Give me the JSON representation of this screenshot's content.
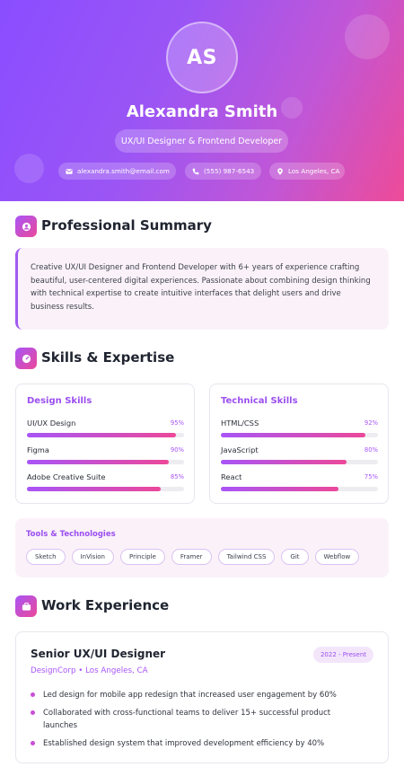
{
  "header": {
    "initials": "AS",
    "name": "Alexandra Smith",
    "role": "UX/UI Designer & Frontend Developer",
    "contact": {
      "email": "alexandra.smith@email.com",
      "phone": "(555) 987-6543",
      "location": "Los Angeles, CA"
    }
  },
  "summary": {
    "title": "Professional Summary",
    "text": "Creative UX/UI Designer and Frontend Developer with 6+ years of experience crafting beautiful, user-centered digital experiences. Passionate about combining design thinking with technical expertise to create intuitive interfaces that delight users and drive business results."
  },
  "skills": {
    "title": "Skills & Expertise",
    "design": {
      "title": "Design Skills",
      "items": [
        {
          "name": "UI/UX Design",
          "pct": "95%",
          "level": 95
        },
        {
          "name": "Figma",
          "pct": "90%",
          "level": 90
        },
        {
          "name": "Adobe Creative Suite",
          "pct": "85%",
          "level": 85
        }
      ]
    },
    "technical": {
      "title": "Technical Skills",
      "items": [
        {
          "name": "HTML/CSS",
          "pct": "92%",
          "level": 92
        },
        {
          "name": "JavaScript",
          "pct": "80%",
          "level": 80
        },
        {
          "name": "React",
          "pct": "75%",
          "level": 75
        }
      ]
    },
    "tools": {
      "title": "Tools & Technologies",
      "tags": [
        "Sketch",
        "InVision",
        "Principle",
        "Framer",
        "Tailwind CSS",
        "Git",
        "Webflow"
      ]
    }
  },
  "experience": {
    "title": "Work Experience",
    "jobs": [
      {
        "title": "Senior UX/UI Designer",
        "period": "2022 - Present",
        "company": "DesignCorp • Los Angeles, CA",
        "bullets": [
          "Led design for mobile app redesign that increased user engagement by 60%",
          "Collaborated with cross-functional teams to deliver 15+ successful product launches",
          "Established design system that improved development efficiency by 40%"
        ]
      }
    ]
  },
  "colors": {
    "accent": "#a855f7",
    "accent_pink": "#ec4899",
    "header_gradient_start": "#8a4dff",
    "header_gradient_end": "#ee4b98",
    "panel_tint": "#fbf2f9"
  }
}
